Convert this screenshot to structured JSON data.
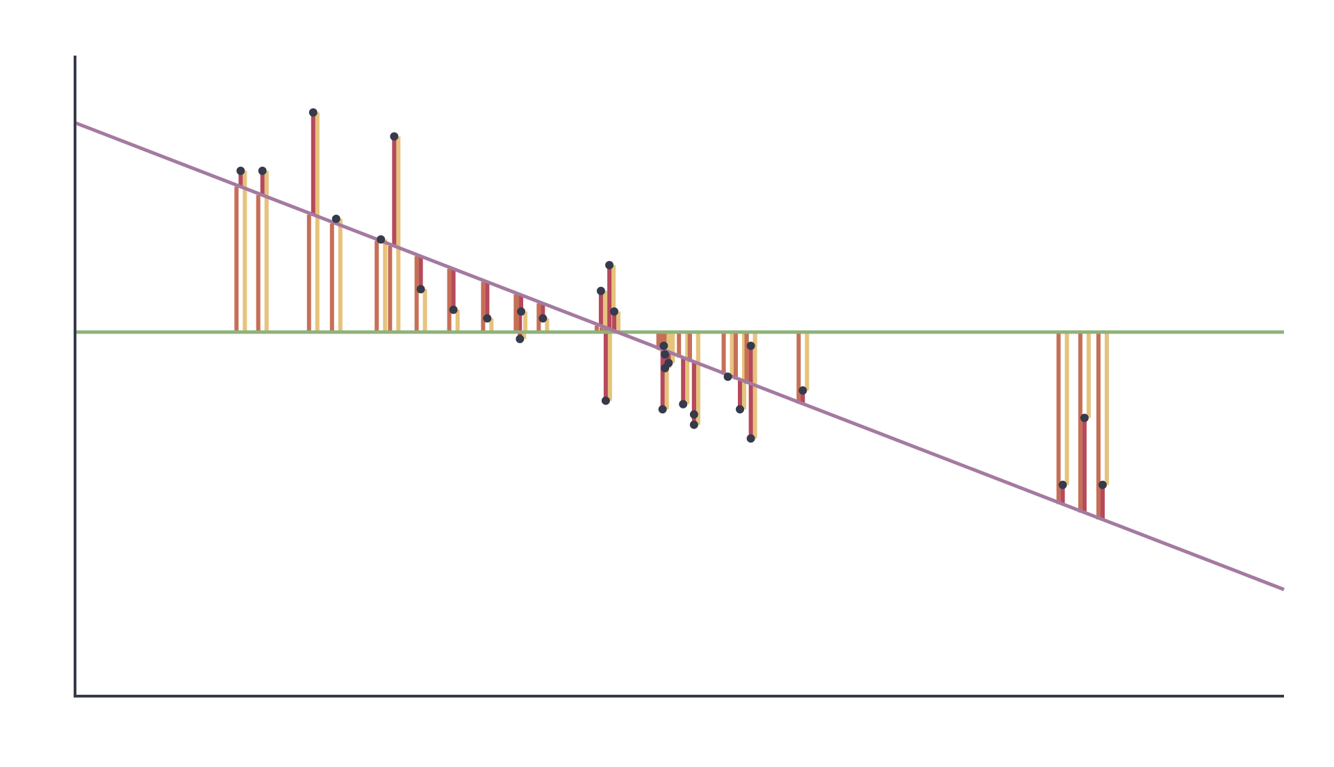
{
  "chart_data": {
    "type": "scatter",
    "title": "",
    "xlabel": "",
    "ylabel": "",
    "grid": false,
    "legend": "none",
    "xlim": [
      0,
      100
    ],
    "ylim": [
      -10,
      10
    ],
    "points": [
      {
        "x": 13.7,
        "y": 4.7
      },
      {
        "x": 15.5,
        "y": 4.7
      },
      {
        "x": 19.7,
        "y": 6.4
      },
      {
        "x": 21.6,
        "y": 3.3
      },
      {
        "x": 25.3,
        "y": 2.7
      },
      {
        "x": 26.4,
        "y": 5.7
      },
      {
        "x": 28.6,
        "y": 1.25
      },
      {
        "x": 31.3,
        "y": 0.65
      },
      {
        "x": 34.1,
        "y": 0.4
      },
      {
        "x": 36.8,
        "y": -0.2
      },
      {
        "x": 36.9,
        "y": 0.6
      },
      {
        "x": 38.7,
        "y": 0.4
      },
      {
        "x": 43.9,
        "y": -2.0
      },
      {
        "x": 43.5,
        "y": 1.2
      },
      {
        "x": 44.2,
        "y": 1.95
      },
      {
        "x": 44.6,
        "y": 0.6
      },
      {
        "x": 48.6,
        "y": -2.25
      },
      {
        "x": 48.7,
        "y": -0.4
      },
      {
        "x": 48.8,
        "y": -0.65
      },
      {
        "x": 48.8,
        "y": -1.05
      },
      {
        "x": 49.1,
        "y": -0.9
      },
      {
        "x": 50.3,
        "y": -2.1
      },
      {
        "x": 51.2,
        "y": -2.4
      },
      {
        "x": 51.2,
        "y": -2.7
      },
      {
        "x": 54.0,
        "y": -1.3
      },
      {
        "x": 55.0,
        "y": -2.25
      },
      {
        "x": 55.9,
        "y": -0.4
      },
      {
        "x": 55.9,
        "y": -3.1
      },
      {
        "x": 60.2,
        "y": -1.7
      },
      {
        "x": 81.7,
        "y": -4.45
      },
      {
        "x": 83.5,
        "y": -2.5
      },
      {
        "x": 85.0,
        "y": -4.45
      }
    ],
    "reference_lines": [
      {
        "type": "horizontal",
        "y": 0
      },
      {
        "type": "regression",
        "x": [
          0,
          100
        ],
        "y": [
          6.1,
          -7.5
        ]
      }
    ],
    "colors": {
      "axis": "#363a4b",
      "zero_line": "#8fb27b",
      "regression_line": "#a47aa0",
      "point": "#363a4b",
      "residual_bar": "#b6495b",
      "predicted_bar": "#c66f57",
      "observed_bar": "#e6c37d"
    }
  }
}
